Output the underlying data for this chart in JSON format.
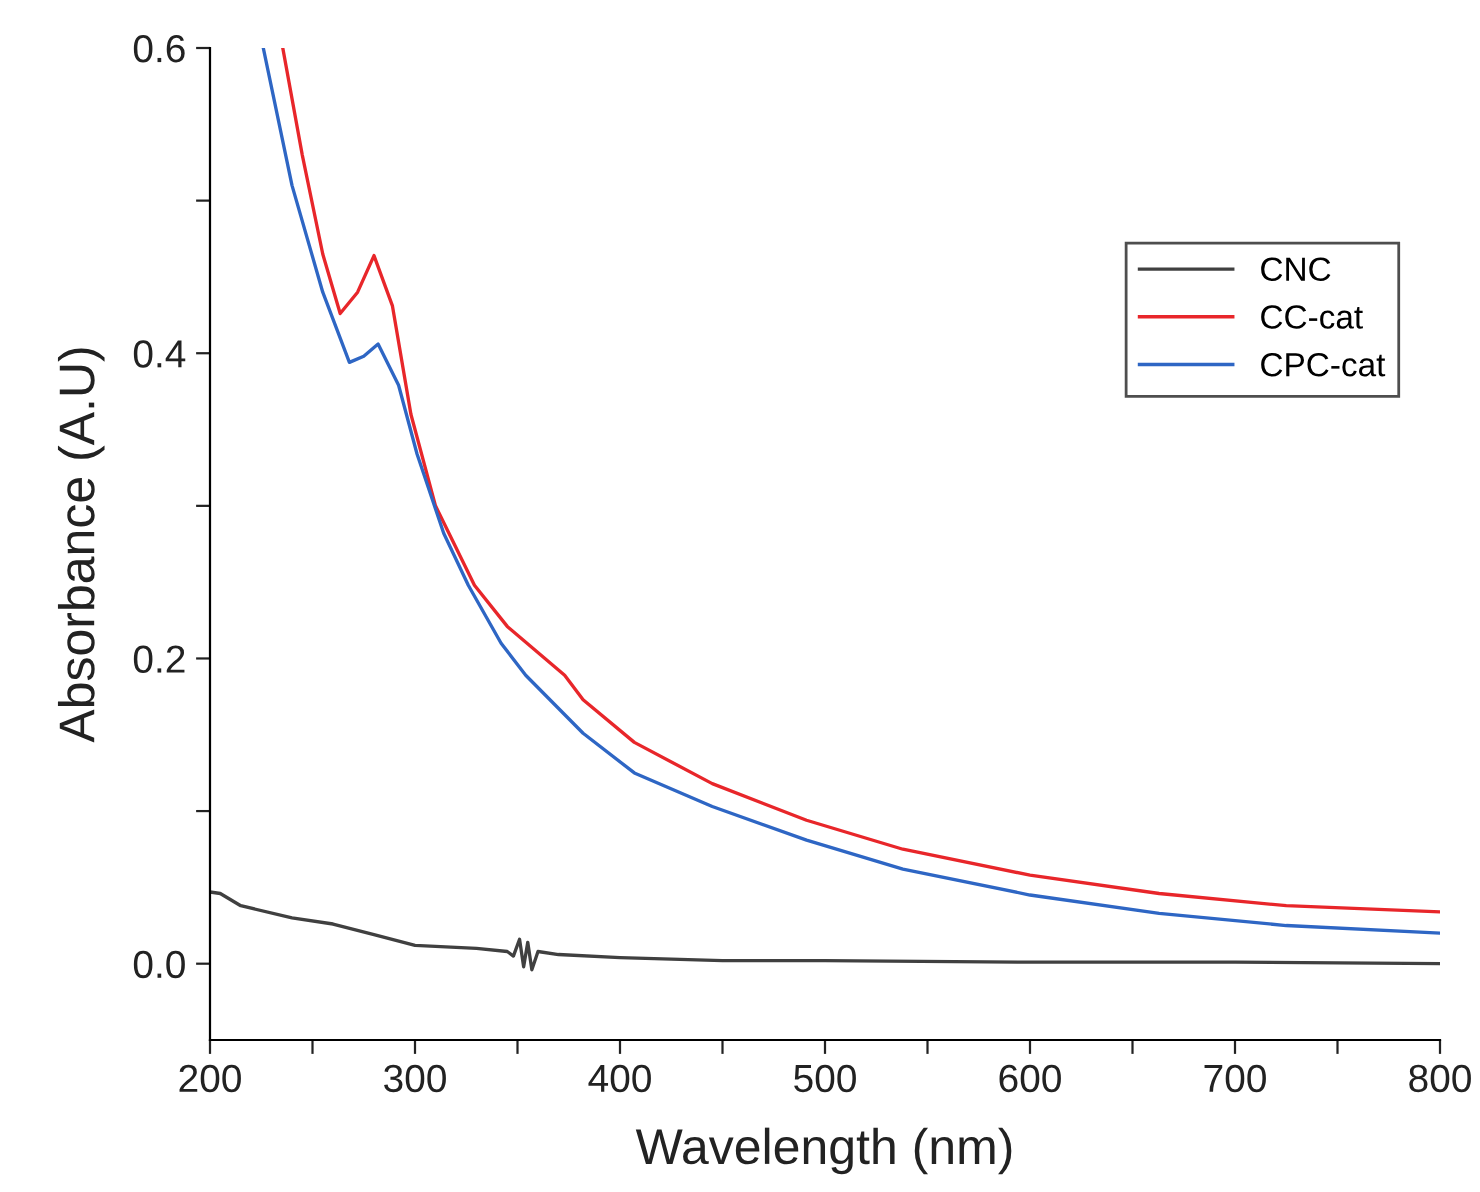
{
  "chart_data": {
    "type": "line",
    "xlabel": "Wavelength (nm)",
    "ylabel": "Absorbance (A.U)",
    "xlim": [
      200,
      800
    ],
    "ylim": [
      -0.05,
      0.6
    ],
    "xticks": [
      200,
      {
        "value": 250,
        "label": null
      },
      300,
      {
        "value": 350,
        "label": null
      },
      400,
      {
        "value": 450,
        "label": null
      },
      500,
      {
        "value": 550,
        "label": null
      },
      600,
      {
        "value": 650,
        "label": null
      },
      700,
      {
        "value": 750,
        "label": null
      },
      800
    ],
    "yticks": [
      {
        "value": 0,
        "label": "0.0"
      },
      {
        "value": 0.1,
        "label": null
      },
      0.2,
      {
        "value": 0.3,
        "label": null
      },
      0.4,
      {
        "value": 0.5,
        "label": null
      },
      0.6
    ],
    "legend": "top right",
    "grid": false,
    "marker": "none",
    "line_style": "solid",
    "series": [
      {
        "name": "CNC",
        "color": "#404040",
        "x": [
          200,
          205,
          215,
          240,
          260,
          280,
          300,
          330,
          345,
          348,
          351,
          353,
          355,
          357,
          360,
          370,
          400,
          450,
          500,
          600,
          700,
          800
        ],
        "values": [
          0.047,
          0.046,
          0.038,
          0.03,
          0.026,
          0.019,
          0.012,
          0.01,
          0.008,
          0.005,
          0.016,
          -0.002,
          0.014,
          -0.004,
          0.008,
          0.006,
          0.004,
          0.002,
          0.002,
          0.001,
          0.001,
          0.0
        ]
      },
      {
        "name": "CC-cat",
        "color": "#e8262a",
        "x": [
          235.5,
          245,
          255,
          263.5,
          272,
          280,
          289,
          298,
          310,
          329,
          345,
          373,
          382,
          407,
          445,
          491,
          538,
          600,
          663,
          725,
          800
        ],
        "values": [
          0.6,
          0.53,
          0.465,
          0.426,
          0.44,
          0.464,
          0.431,
          0.36,
          0.3,
          0.248,
          0.221,
          0.189,
          0.173,
          0.145,
          0.118,
          0.094,
          0.075,
          0.058,
          0.046,
          0.038,
          0.034
        ]
      },
      {
        "name": "CPC-cat",
        "color": "#2e66c4",
        "x": [
          226,
          240,
          255,
          268,
          275,
          282,
          292,
          301,
          314,
          326,
          342,
          354,
          382,
          407,
          445,
          491,
          538,
          600,
          663,
          725,
          800
        ],
        "values": [
          0.6,
          0.51,
          0.44,
          0.394,
          0.398,
          0.406,
          0.379,
          0.334,
          0.282,
          0.248,
          0.21,
          0.189,
          0.151,
          0.125,
          0.103,
          0.081,
          0.062,
          0.045,
          0.033,
          0.025,
          0.02
        ]
      }
    ]
  }
}
